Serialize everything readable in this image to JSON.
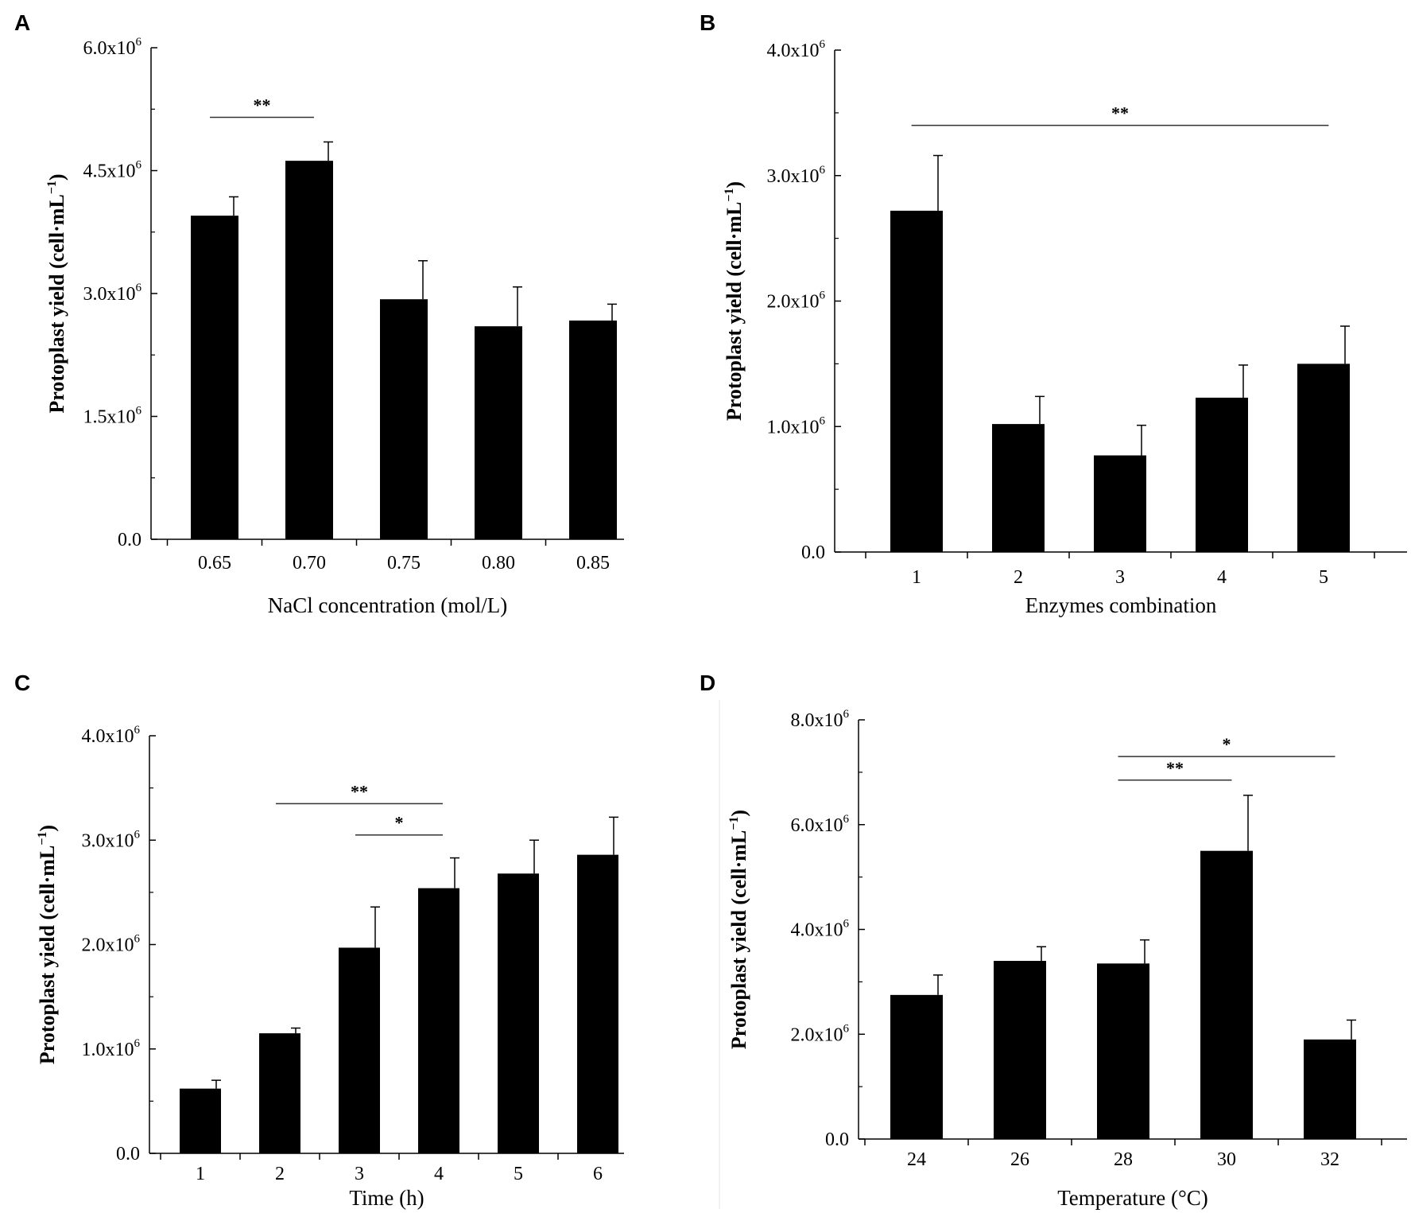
{
  "chart_data": [
    {
      "panel": "A",
      "type": "bar",
      "categories": [
        "0.65",
        "0.70",
        "0.75",
        "0.80",
        "0.85"
      ],
      "values": [
        3.95,
        4.62,
        2.93,
        2.6,
        2.67
      ],
      "errors": [
        0.23,
        0.23,
        0.47,
        0.48,
        0.2
      ],
      "yticks": [
        "0.0",
        "1.5x10",
        "3.0x10",
        "4.5x10",
        "6.0x10"
      ],
      "ytick_exp": "6",
      "ylim": [
        0,
        6.0
      ],
      "ystep": 1.5,
      "xlabel": "NaCl concentration (mol/L)",
      "ylabel": "Protoplast yield (cell·mL",
      "ylabel_exp": "−1",
      "significance": [
        {
          "from": 1,
          "to": 2,
          "label": "**",
          "level": 5.15
        }
      ]
    },
    {
      "panel": "B",
      "type": "bar",
      "categories": [
        "1",
        "2",
        "3",
        "4",
        "5"
      ],
      "values": [
        2.72,
        1.02,
        0.77,
        1.23,
        1.5
      ],
      "errors": [
        0.44,
        0.22,
        0.24,
        0.26,
        0.3
      ],
      "yticks": [
        "0.0",
        "1.0x10",
        "2.0x10",
        "3.0x10",
        "4.0x10"
      ],
      "ytick_exp": "6",
      "ylim": [
        0,
        4.0
      ],
      "ystep": 1.0,
      "xlabel": "Enzymes combination",
      "ylabel": "Protoplast yield (cell·mL",
      "ylabel_exp": "−1",
      "significance": [
        {
          "from": 1,
          "to": 5,
          "label": "**",
          "level": 3.4
        }
      ]
    },
    {
      "panel": "C",
      "type": "bar",
      "categories": [
        "1",
        "2",
        "3",
        "4",
        "5",
        "6"
      ],
      "values": [
        0.62,
        1.15,
        1.97,
        2.54,
        2.68,
        2.86
      ],
      "errors": [
        0.08,
        0.05,
        0.39,
        0.29,
        0.32,
        0.36
      ],
      "yticks": [
        "0.0",
        "1.0x10",
        "2.0x10",
        "3.0x10",
        "4.0x10"
      ],
      "ytick_exp": "6",
      "ylim": [
        0,
        4.0
      ],
      "ystep": 1.0,
      "xlabel": "Time (h)",
      "ylabel": "Protoplast yield (cell·mL",
      "ylabel_exp": "−1",
      "significance": [
        {
          "from": 2,
          "to": 4,
          "label": "**",
          "level": 3.35
        },
        {
          "from": 3,
          "to": 4,
          "label": "*",
          "level": 3.05
        }
      ]
    },
    {
      "panel": "D",
      "type": "bar",
      "categories": [
        "24",
        "26",
        "28",
        "30",
        "32"
      ],
      "values": [
        2.75,
        3.4,
        3.35,
        5.5,
        1.9
      ],
      "errors": [
        0.38,
        0.27,
        0.45,
        1.06,
        0.37
      ],
      "yticks": [
        "0.0",
        "2.0x10",
        "4.0x10",
        "6.0x10",
        "8.0x10"
      ],
      "ytick_exp": "6",
      "ylim": [
        0,
        8.0
      ],
      "ystep": 2.0,
      "xlabel": "Temperature (°C)",
      "ylabel": "Protoplast yield (cell·mL",
      "ylabel_exp": "−1",
      "significance": [
        {
          "from": 3,
          "to": 5,
          "label": "*",
          "level": 7.3
        },
        {
          "from": 3,
          "to": 4,
          "label": "**",
          "level": 6.85
        }
      ]
    }
  ]
}
